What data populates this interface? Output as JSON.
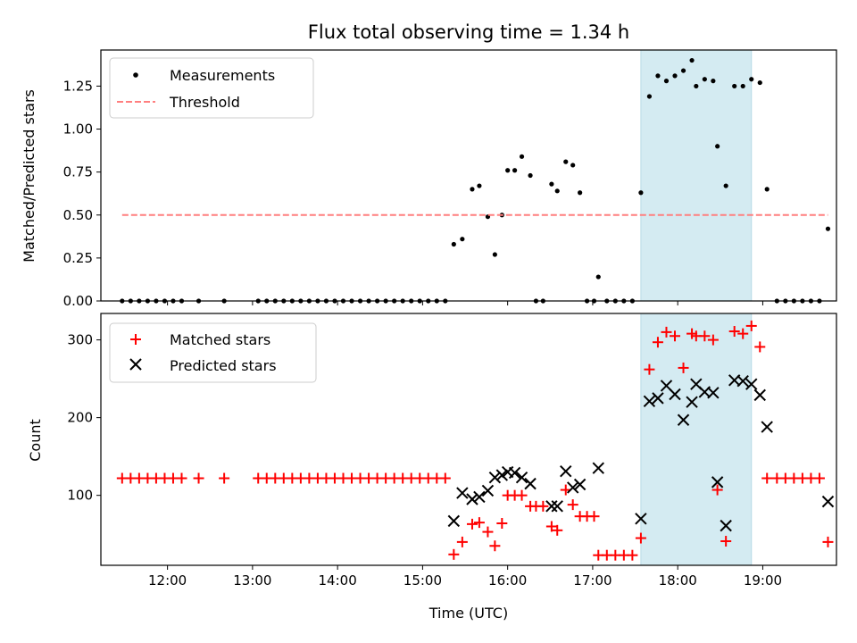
{
  "chart_data": [
    {
      "type": "scatter",
      "title": "Flux total observing time = 1.34 h",
      "xlabel": "",
      "ylabel": "Matched/Predicted stars",
      "xlim": [
        "11:13",
        "19:52"
      ],
      "ylim": [
        0,
        1.46
      ],
      "yticks": [
        0,
        0.25,
        0.5,
        0.75,
        1.0,
        1.25
      ],
      "ytick_labels": [
        "0.00",
        "0.25",
        "0.50",
        "0.75",
        "1.00",
        "1.25"
      ],
      "legend": "top-left",
      "highlight_span": [
        "17:34",
        "18:52"
      ],
      "highlight_color": "#d4ebf2",
      "series": [
        {
          "name": "Measurements",
          "marker": "dot",
          "color": "#000000",
          "points": [
            [
              "11:28",
              0
            ],
            [
              "11:34",
              0
            ],
            [
              "11:40",
              0
            ],
            [
              "11:46",
              0
            ],
            [
              "11:52",
              0
            ],
            [
              "11:58",
              0
            ],
            [
              "12:04",
              0
            ],
            [
              "12:10",
              0
            ],
            [
              "12:22",
              0
            ],
            [
              "12:40",
              0
            ],
            [
              "13:04",
              0
            ],
            [
              "13:10",
              0
            ],
            [
              "13:16",
              0
            ],
            [
              "13:22",
              0
            ],
            [
              "13:28",
              0
            ],
            [
              "13:34",
              0
            ],
            [
              "13:40",
              0
            ],
            [
              "13:46",
              0
            ],
            [
              "13:52",
              0
            ],
            [
              "13:58",
              0
            ],
            [
              "14:04",
              0
            ],
            [
              "14:10",
              0
            ],
            [
              "14:16",
              0
            ],
            [
              "14:22",
              0
            ],
            [
              "14:28",
              0
            ],
            [
              "14:34",
              0
            ],
            [
              "14:40",
              0
            ],
            [
              "14:46",
              0
            ],
            [
              "14:52",
              0
            ],
            [
              "14:58",
              0
            ],
            [
              "15:04",
              0
            ],
            [
              "15:10",
              0
            ],
            [
              "15:16",
              0
            ],
            [
              "15:22",
              0.33
            ],
            [
              "15:28",
              0.36
            ],
            [
              "15:35",
              0.65
            ],
            [
              "15:40",
              0.67
            ],
            [
              "15:46",
              0.49
            ],
            [
              "15:51",
              0.27
            ],
            [
              "15:56",
              0.5
            ],
            [
              "16:00",
              0.76
            ],
            [
              "16:05",
              0.76
            ],
            [
              "16:10",
              0.84
            ],
            [
              "16:16",
              0.73
            ],
            [
              "16:20",
              0
            ],
            [
              "16:25",
              0
            ],
            [
              "16:31",
              0.68
            ],
            [
              "16:35",
              0.64
            ],
            [
              "16:41",
              0.81
            ],
            [
              "16:46",
              0.79
            ],
            [
              "16:51",
              0.63
            ],
            [
              "16:56",
              0
            ],
            [
              "17:01",
              0
            ],
            [
              "17:04",
              0.14
            ],
            [
              "17:10",
              0
            ],
            [
              "17:16",
              0
            ],
            [
              "17:22",
              0
            ],
            [
              "17:28",
              0
            ],
            [
              "17:34",
              0.63
            ],
            [
              "17:40",
              1.19
            ],
            [
              "17:46",
              1.31
            ],
            [
              "17:52",
              1.28
            ],
            [
              "17:58",
              1.31
            ],
            [
              "18:04",
              1.34
            ],
            [
              "18:10",
              1.4
            ],
            [
              "18:13",
              1.25
            ],
            [
              "18:19",
              1.29
            ],
            [
              "18:25",
              1.28
            ],
            [
              "18:28",
              0.9
            ],
            [
              "18:34",
              0.67
            ],
            [
              "18:40",
              1.25
            ],
            [
              "18:46",
              1.25
            ],
            [
              "18:52",
              1.29
            ],
            [
              "18:58",
              1.27
            ],
            [
              "19:03",
              0.65
            ],
            [
              "19:10",
              0
            ],
            [
              "19:16",
              0
            ],
            [
              "19:22",
              0
            ],
            [
              "19:28",
              0
            ],
            [
              "19:34",
              0
            ],
            [
              "19:40",
              0
            ],
            [
              "19:46",
              0.42
            ]
          ]
        },
        {
          "name": "Threshold",
          "marker": "dashed-line",
          "color": "#ff7f7f",
          "points": [
            [
              "11:28",
              0.5
            ],
            [
              "19:46",
              0.5
            ]
          ]
        }
      ]
    },
    {
      "type": "scatter",
      "title": "",
      "xlabel": "Time (UTC)",
      "ylabel": "Count",
      "xlim": [
        "11:13",
        "19:52"
      ],
      "ylim": [
        10,
        334
      ],
      "yticks": [
        100,
        200,
        300
      ],
      "ytick_labels": [
        "100",
        "200",
        "300"
      ],
      "xticks": [
        "12:00",
        "13:00",
        "14:00",
        "15:00",
        "16:00",
        "17:00",
        "18:00",
        "19:00"
      ],
      "legend": "top-left",
      "highlight_span": [
        "17:34",
        "18:52"
      ],
      "highlight_color": "#d4ebf2",
      "series": [
        {
          "name": "Matched stars",
          "marker": "plus",
          "color": "#ff0000",
          "points": [
            [
              "11:28",
              122
            ],
            [
              "11:34",
              122
            ],
            [
              "11:40",
              122
            ],
            [
              "11:46",
              122
            ],
            [
              "11:52",
              122
            ],
            [
              "11:58",
              122
            ],
            [
              "12:04",
              122
            ],
            [
              "12:10",
              122
            ],
            [
              "12:22",
              122
            ],
            [
              "12:40",
              122
            ],
            [
              "13:04",
              122
            ],
            [
              "13:10",
              122
            ],
            [
              "13:16",
              122
            ],
            [
              "13:22",
              122
            ],
            [
              "13:28",
              122
            ],
            [
              "13:34",
              122
            ],
            [
              "13:40",
              122
            ],
            [
              "13:46",
              122
            ],
            [
              "13:52",
              122
            ],
            [
              "13:58",
              122
            ],
            [
              "14:04",
              122
            ],
            [
              "14:10",
              122
            ],
            [
              "14:16",
              122
            ],
            [
              "14:22",
              122
            ],
            [
              "14:28",
              122
            ],
            [
              "14:34",
              122
            ],
            [
              "14:40",
              122
            ],
            [
              "14:46",
              122
            ],
            [
              "14:52",
              122
            ],
            [
              "14:58",
              122
            ],
            [
              "15:04",
              122
            ],
            [
              "15:10",
              122
            ],
            [
              "15:16",
              122
            ],
            [
              "15:22",
              24
            ],
            [
              "15:28",
              40
            ],
            [
              "15:35",
              63
            ],
            [
              "15:40",
              65
            ],
            [
              "15:46",
              53
            ],
            [
              "15:51",
              35
            ],
            [
              "15:56",
              64
            ],
            [
              "16:00",
              100
            ],
            [
              "16:05",
              100
            ],
            [
              "16:10",
              100
            ],
            [
              "16:16",
              86
            ],
            [
              "16:20",
              86
            ],
            [
              "16:25",
              86
            ],
            [
              "16:31",
              60
            ],
            [
              "16:35",
              55
            ],
            [
              "16:41",
              107
            ],
            [
              "16:46",
              88
            ],
            [
              "16:51",
              73
            ],
            [
              "16:56",
              73
            ],
            [
              "17:01",
              73
            ],
            [
              "17:04",
              23
            ],
            [
              "17:10",
              23
            ],
            [
              "17:16",
              23
            ],
            [
              "17:22",
              23
            ],
            [
              "17:28",
              23
            ],
            [
              "17:34",
              45
            ],
            [
              "17:40",
              262
            ],
            [
              "17:46",
              297
            ],
            [
              "17:52",
              310
            ],
            [
              "17:58",
              305
            ],
            [
              "18:04",
              264
            ],
            [
              "18:10",
              308
            ],
            [
              "18:13",
              305
            ],
            [
              "18:19",
              305
            ],
            [
              "18:25",
              300
            ],
            [
              "18:28",
              107
            ],
            [
              "18:34",
              41
            ],
            [
              "18:40",
              311
            ],
            [
              "18:46",
              308
            ],
            [
              "18:52",
              318
            ],
            [
              "18:58",
              291
            ],
            [
              "19:03",
              122
            ],
            [
              "19:10",
              122
            ],
            [
              "19:16",
              122
            ],
            [
              "19:22",
              122
            ],
            [
              "19:28",
              122
            ],
            [
              "19:34",
              122
            ],
            [
              "19:40",
              122
            ],
            [
              "19:46",
              40
            ]
          ]
        },
        {
          "name": "Predicted stars",
          "marker": "x",
          "color": "#000000",
          "points": [
            [
              "15:22",
              67
            ],
            [
              "15:28",
              103
            ],
            [
              "15:35",
              95
            ],
            [
              "15:40",
              98
            ],
            [
              "15:46",
              106
            ],
            [
              "15:51",
              123
            ],
            [
              "15:56",
              126
            ],
            [
              "16:00",
              130
            ],
            [
              "16:05",
              129
            ],
            [
              "16:10",
              123
            ],
            [
              "16:16",
              115
            ],
            [
              "16:31",
              86
            ],
            [
              "16:35",
              86
            ],
            [
              "16:41",
              131
            ],
            [
              "16:46",
              110
            ],
            [
              "16:51",
              114
            ],
            [
              "17:04",
              135
            ],
            [
              "17:34",
              70
            ],
            [
              "17:40",
              221
            ],
            [
              "17:46",
              225
            ],
            [
              "17:52",
              241
            ],
            [
              "17:58",
              230
            ],
            [
              "18:04",
              197
            ],
            [
              "18:10",
              220
            ],
            [
              "18:13",
              243
            ],
            [
              "18:19",
              233
            ],
            [
              "18:25",
              232
            ],
            [
              "18:28",
              117
            ],
            [
              "18:34",
              61
            ],
            [
              "18:40",
              248
            ],
            [
              "18:46",
              247
            ],
            [
              "18:52",
              243
            ],
            [
              "18:58",
              229
            ],
            [
              "19:03",
              188
            ],
            [
              "19:46",
              92
            ]
          ]
        }
      ]
    }
  ]
}
